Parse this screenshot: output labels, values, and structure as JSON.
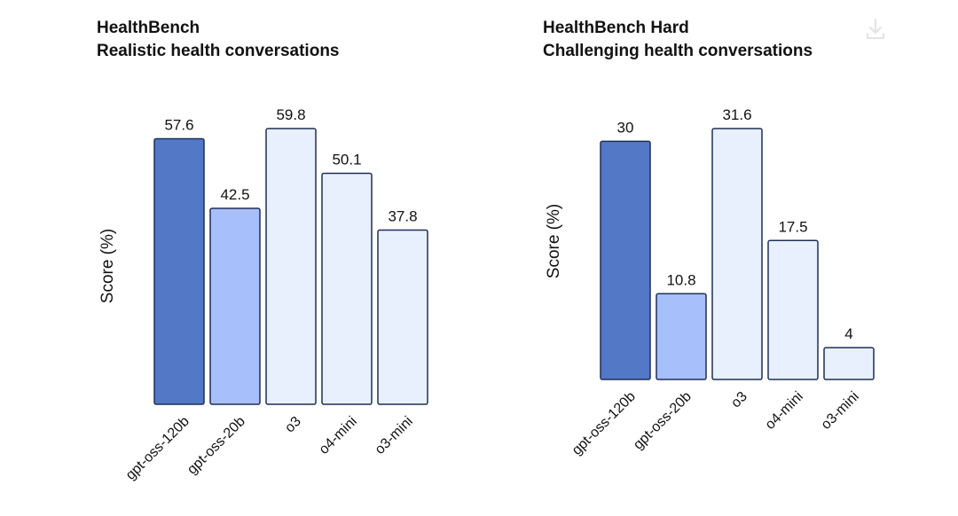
{
  "colors": {
    "gpt-oss-120b": "#5278c6",
    "gpt-oss-20b": "#a7bffa",
    "other": "#e8f0fe",
    "stroke": "#1f2f57"
  },
  "icons": {
    "download": "download-icon"
  },
  "chart_data": [
    {
      "type": "bar",
      "title": "HealthBench",
      "subtitle": "Realistic health conversations",
      "ylabel": "Score (%)",
      "ylim": [
        0,
        60
      ],
      "grid": false,
      "categories": [
        "gpt-oss-120b",
        "gpt-oss-20b",
        "o3",
        "o4-mini",
        "o3-mini"
      ],
      "values": [
        57.6,
        42.5,
        59.8,
        50.1,
        37.8
      ],
      "value_labels": [
        "57.6",
        "42.5",
        "59.8",
        "50.1",
        "37.8"
      ]
    },
    {
      "type": "bar",
      "title": "HealthBench Hard",
      "subtitle": "Challenging health conversations",
      "ylabel": "Score (%)",
      "ylim": [
        0,
        31.6
      ],
      "grid": false,
      "categories": [
        "gpt-oss-120b",
        "gpt-oss-20b",
        "o3",
        "o4-mini",
        "o3-mini"
      ],
      "values": [
        30,
        10.8,
        31.6,
        17.5,
        4
      ],
      "value_labels": [
        "30",
        "10.8",
        "31.6",
        "17.5",
        "4"
      ]
    }
  ]
}
